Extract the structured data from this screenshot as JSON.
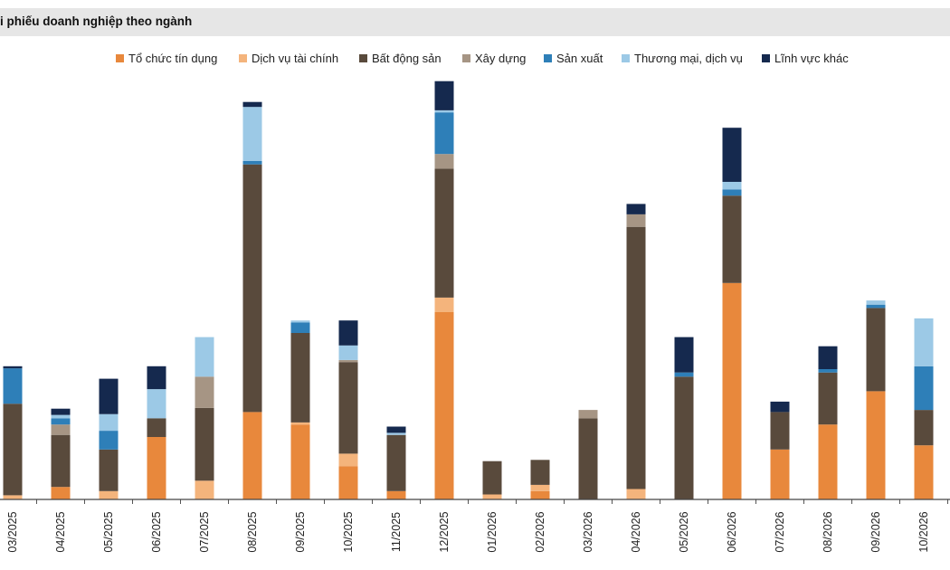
{
  "header": {
    "title": "i phiếu doanh nghiệp theo ngành"
  },
  "chart_data": {
    "type": "bar",
    "stacked": true,
    "title": "i phiếu doanh nghiệp theo ngành",
    "xlabel": "",
    "ylabel": "",
    "ylim": [
      0,
      100
    ],
    "grid": false,
    "legend_position": "top",
    "categories": [
      "03/2025",
      "04/2025",
      "05/2025",
      "06/2025",
      "07/2025",
      "08/2025",
      "09/2025",
      "10/2025",
      "11/2025",
      "12/2025",
      "01/2026",
      "02/2026",
      "03/2026",
      "04/2026",
      "05/2026",
      "06/2026",
      "07/2026",
      "08/2026",
      "09/2026",
      "10/2026"
    ],
    "series": [
      {
        "name": "Tổ chức tín dụng",
        "color": "#e8883c",
        "values": [
          0,
          3,
          0,
          15,
          0,
          21,
          18,
          8,
          2,
          45,
          0,
          2,
          0,
          0,
          0,
          52,
          12,
          18,
          26,
          13
        ]
      },
      {
        "name": "Dịch vụ tài chính",
        "color": "#f4b47c",
        "values": [
          1,
          0,
          2,
          0,
          4.5,
          0,
          0.5,
          3,
          0,
          3.5,
          1.2,
          1.5,
          0,
          2.5,
          0,
          0,
          0,
          0,
          0,
          0
        ]
      },
      {
        "name": "Bất động sản",
        "color": "#594a3c",
        "values": [
          22,
          12.5,
          10,
          4.5,
          17.5,
          59.5,
          21.5,
          22,
          13.5,
          31,
          8,
          6,
          19.5,
          63,
          29.5,
          21,
          9,
          12.5,
          20,
          8.5
        ]
      },
      {
        "name": "Xây dựng",
        "color": "#a69584",
        "values": [
          0,
          2.5,
          0,
          0,
          7.5,
          0,
          0,
          0.5,
          0,
          3.5,
          0,
          0,
          2,
          3,
          0,
          0,
          0,
          0,
          0,
          0
        ]
      },
      {
        "name": "Sản xuất",
        "color": "#2e7fb8",
        "values": [
          8.5,
          1.5,
          4.5,
          0,
          0,
          0.8,
          2.5,
          0,
          0,
          10,
          0,
          0,
          0,
          0,
          1,
          1.5,
          0,
          0.8,
          0.8,
          10.5
        ]
      },
      {
        "name": "Thương mại, dịch vụ",
        "color": "#9cc9e6",
        "values": [
          0,
          0.8,
          4,
          7,
          9.5,
          13,
          0.5,
          3.5,
          0.5,
          0.5,
          0,
          0,
          0,
          0,
          0,
          1.8,
          0,
          0,
          1,
          11.5
        ]
      },
      {
        "name": "Lĩnh vực khác",
        "color": "#15294e",
        "values": [
          0.5,
          1.5,
          8.5,
          5.5,
          0,
          1.2,
          0,
          6,
          1.5,
          7,
          0,
          0,
          0,
          2.5,
          8.5,
          13,
          2.5,
          5.5,
          0,
          0
        ]
      }
    ]
  }
}
